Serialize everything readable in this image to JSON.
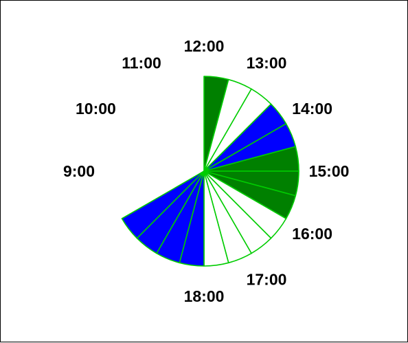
{
  "chart_data": {
    "type": "pie",
    "title": "",
    "hour_labels": [
      "9:00",
      "10:00",
      "11:00",
      "12:00",
      "13:00",
      "14:00",
      "15:00",
      "16:00",
      "17:00",
      "18:00"
    ],
    "slice_minutes": 30,
    "slices": [
      {
        "start": "12:00",
        "color": "#008000"
      },
      {
        "start": "12:30",
        "color": "#ffffff"
      },
      {
        "start": "13:00",
        "color": "#ffffff"
      },
      {
        "start": "13:30",
        "color": "#0000ff"
      },
      {
        "start": "14:00",
        "color": "#0000ff"
      },
      {
        "start": "14:30",
        "color": "#008000"
      },
      {
        "start": "15:00",
        "color": "#008000"
      },
      {
        "start": "15:30",
        "color": "#008000"
      },
      {
        "start": "16:00",
        "color": "#ffffff"
      },
      {
        "start": "16:30",
        "color": "#ffffff"
      },
      {
        "start": "17:00",
        "color": "#ffffff"
      },
      {
        "start": "17:30",
        "color": "#ffffff"
      },
      {
        "start": "18:00",
        "color": "#0000ff"
      },
      {
        "start": "18:30",
        "color": "#0000ff"
      },
      {
        "start": "19:00",
        "color": "#0000ff"
      },
      {
        "start": "19:30",
        "color": "#0000ff"
      }
    ],
    "colors": {
      "outline": "#00cc00",
      "legend_text": "#000000"
    }
  }
}
